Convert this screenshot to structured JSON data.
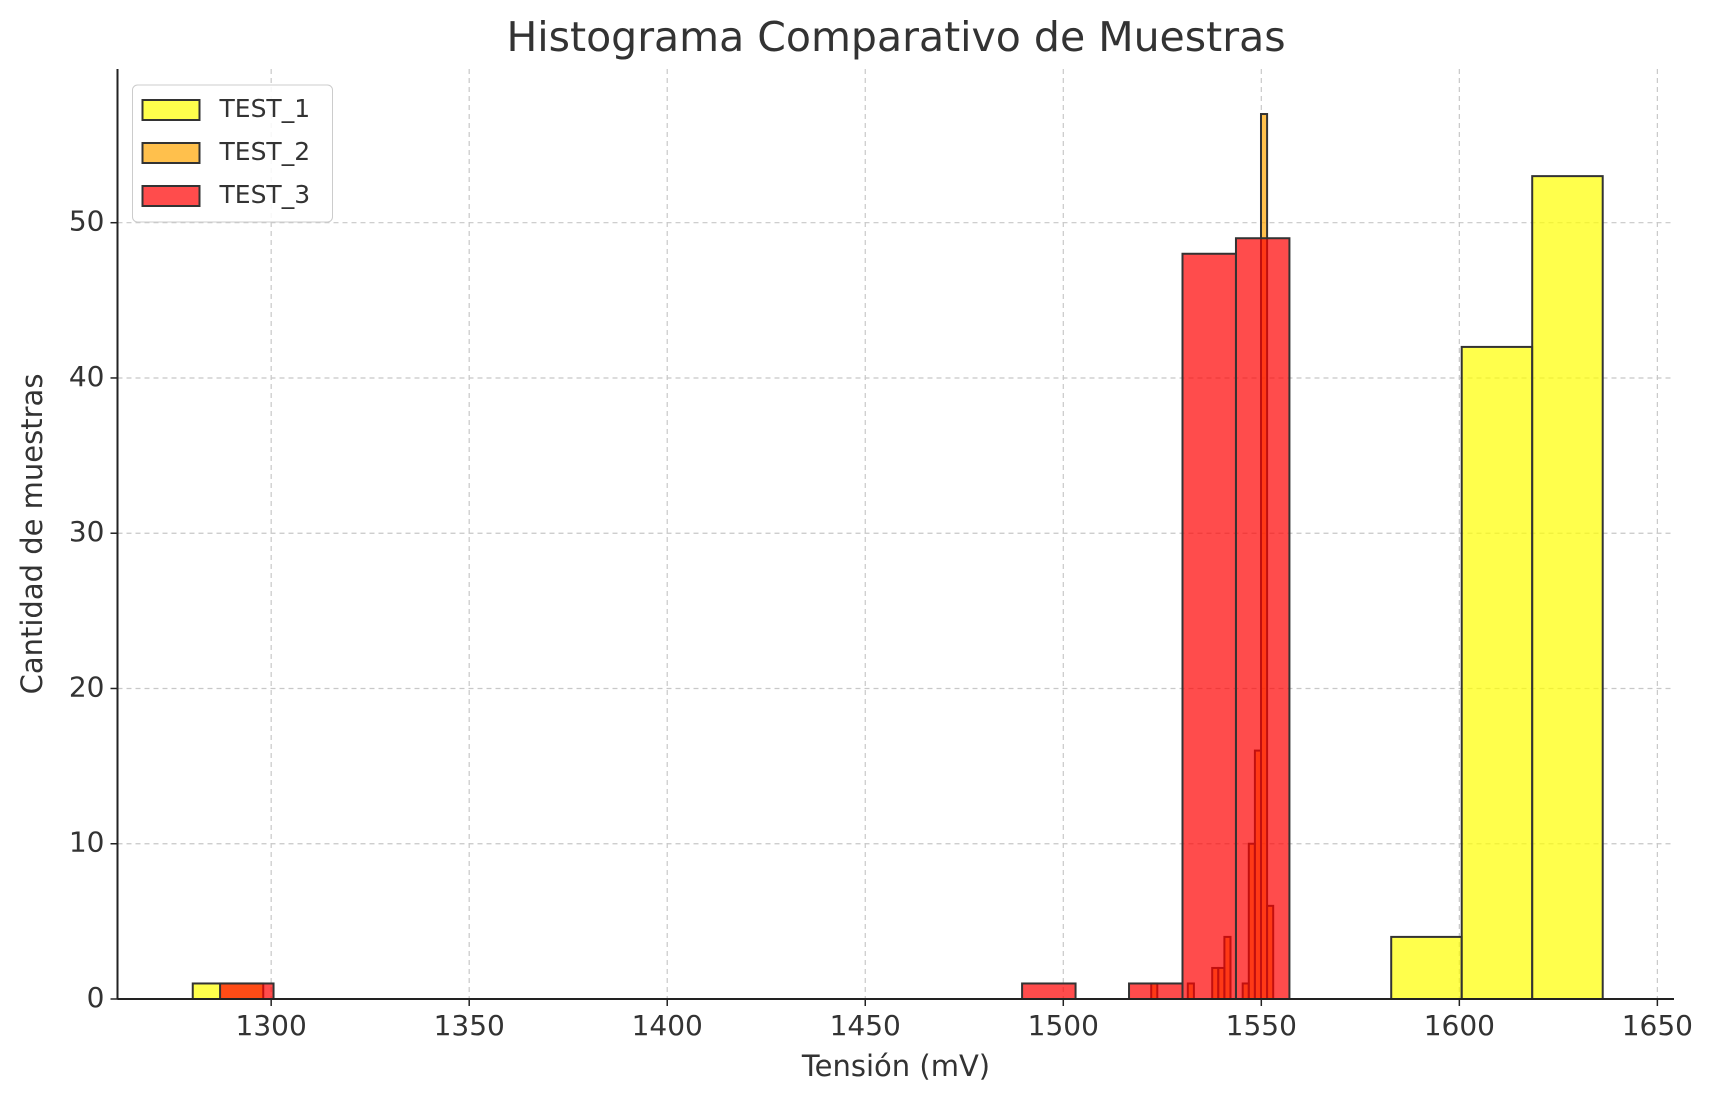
{
  "chart_data": {
    "type": "histogram",
    "title": "Histograma Comparativo de Muestras",
    "x_label": "Tensión (mV)",
    "y_label": "Cantidad de muestras",
    "xlim": [
      1261.2,
      1654.2
    ],
    "ylim": [
      0,
      59.9
    ],
    "xticks": [
      1300,
      1350,
      1400,
      1450,
      1500,
      1550,
      1600,
      1650
    ],
    "yticks": [
      0,
      10,
      20,
      30,
      40,
      50
    ],
    "grid": true,
    "legend": "upper-left",
    "opacity": 0.7,
    "series": [
      {
        "name": "TEST_1",
        "color": "#ffff00",
        "bins": [
          1280.2,
          1298.0,
          1315.8,
          1333.6,
          1351.4,
          1369.2,
          1387.0,
          1404.8,
          1422.6,
          1440.4,
          1458.2,
          1476.0,
          1493.8,
          1511.6,
          1529.4,
          1547.2,
          1565.0,
          1582.8,
          1600.6,
          1618.4,
          1636.2
        ],
        "values": [
          1,
          0,
          0,
          0,
          0,
          0,
          0,
          0,
          0,
          0,
          0,
          0,
          0,
          0,
          0,
          0,
          0,
          4,
          42,
          53
        ]
      },
      {
        "name": "TEST_2",
        "color": "#ffa500",
        "bins": [
          1522.2,
          1523.74,
          1525.28,
          1526.82,
          1528.36,
          1529.9,
          1531.44,
          1532.98,
          1534.52,
          1536.06,
          1537.6,
          1539.14,
          1540.68,
          1542.22,
          1543.76,
          1545.3,
          1546.84,
          1548.38,
          1549.92,
          1551.46,
          1553.0
        ],
        "values": [
          1,
          0,
          0,
          0,
          0,
          0,
          1,
          0,
          0,
          0,
          2,
          2,
          4,
          0,
          0,
          1,
          10,
          16,
          57,
          6
        ]
      },
      {
        "name": "TEST_3",
        "color": "#ff0000",
        "bins": [
          1287.1,
          1300.6,
          1314.1,
          1327.6,
          1341.1,
          1354.6,
          1368.1,
          1381.6,
          1395.1,
          1408.6,
          1422.1,
          1435.6,
          1449.1,
          1462.6,
          1476.1,
          1489.6,
          1503.1,
          1516.6,
          1530.1,
          1543.6,
          1557.1
        ],
        "values": [
          1,
          0,
          0,
          0,
          0,
          0,
          0,
          0,
          0,
          0,
          0,
          0,
          0,
          0,
          0,
          1,
          0,
          1,
          48,
          49
        ]
      }
    ]
  }
}
